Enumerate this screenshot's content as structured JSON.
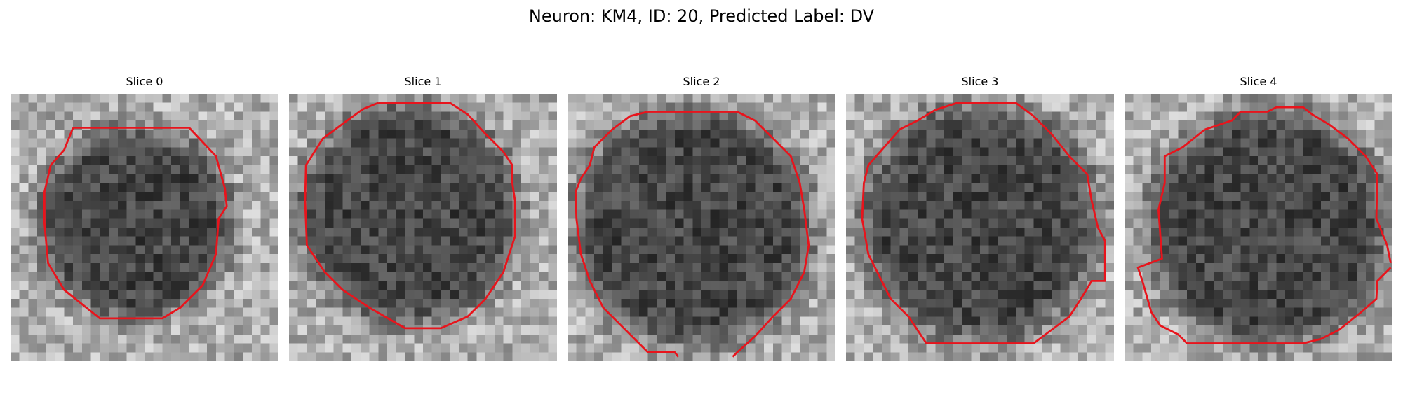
{
  "figure": {
    "title": "Neuron: KM4, ID: 20, Predicted Label: DV",
    "contour_color": "#e8141c"
  },
  "panels": [
    {
      "title": "Slice 0"
    },
    {
      "title": "Slice 1"
    },
    {
      "title": "Slice 2"
    },
    {
      "title": "Slice 3"
    },
    {
      "title": "Slice 4"
    }
  ]
}
